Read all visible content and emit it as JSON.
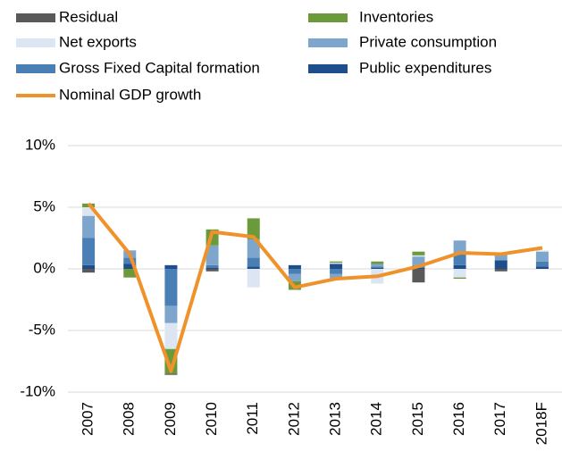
{
  "chart_data": {
    "type": "stacked_bar_line",
    "categories": [
      "2007",
      "2008",
      "2009",
      "2010",
      "2011",
      "2012",
      "2013",
      "2014",
      "2015",
      "2016",
      "2017",
      "2018F"
    ],
    "series": [
      {
        "name": "Public expenditures",
        "color": "#1f4e8c",
        "values": [
          0.3,
          0.4,
          0.3,
          0.1,
          0.2,
          0.3,
          0.4,
          0.1,
          0.1,
          0.3,
          0.7,
          0.2
        ]
      },
      {
        "name": "Gross Fixed Capital formation",
        "color": "#4a7fb5",
        "values": [
          2.2,
          0.5,
          -3.0,
          0.2,
          0.7,
          -0.4,
          -0.4,
          0.1,
          0.2,
          0.9,
          0.0,
          0.4
        ]
      },
      {
        "name": "Private consumption",
        "color": "#7ea6cc",
        "values": [
          1.8,
          0.6,
          -1.4,
          1.6,
          1.5,
          -0.6,
          -0.5,
          0.2,
          0.7,
          1.1,
          0.5,
          0.8
        ]
      },
      {
        "name": "Net exports",
        "color": "#dce6f2",
        "values": [
          0.7,
          0.0,
          -2.1,
          0.0,
          -1.5,
          0.0,
          0.1,
          -1.2,
          0.1,
          -0.7,
          0.0,
          0.1
        ]
      },
      {
        "name": "Inventories",
        "color": "#6a9a3a",
        "values": [
          0.3,
          -0.7,
          -2.0,
          1.3,
          1.7,
          -0.7,
          0.1,
          0.2,
          0.3,
          -0.1,
          0.1,
          0.0
        ]
      },
      {
        "name": "Residual",
        "color": "#595959",
        "values": [
          -0.3,
          0.0,
          -0.1,
          -0.2,
          0.0,
          0.0,
          0.0,
          0.0,
          -1.1,
          0.0,
          -0.2,
          0.0
        ]
      }
    ],
    "line": {
      "name": "Nominal GDP growth",
      "color": "#f0922b",
      "values": [
        5.3,
        1.2,
        -8.3,
        3.0,
        2.6,
        -1.5,
        -0.8,
        -0.6,
        0.2,
        1.3,
        1.2,
        1.7
      ]
    },
    "ylim": [
      -10,
      10
    ],
    "yticks": [
      {
        "value": -10,
        "label": "-10%"
      },
      {
        "value": -5,
        "label": "-5%"
      },
      {
        "value": 0,
        "label": "0%"
      },
      {
        "value": 5,
        "label": "5%"
      },
      {
        "value": 10,
        "label": "10%"
      }
    ],
    "grid": true
  }
}
